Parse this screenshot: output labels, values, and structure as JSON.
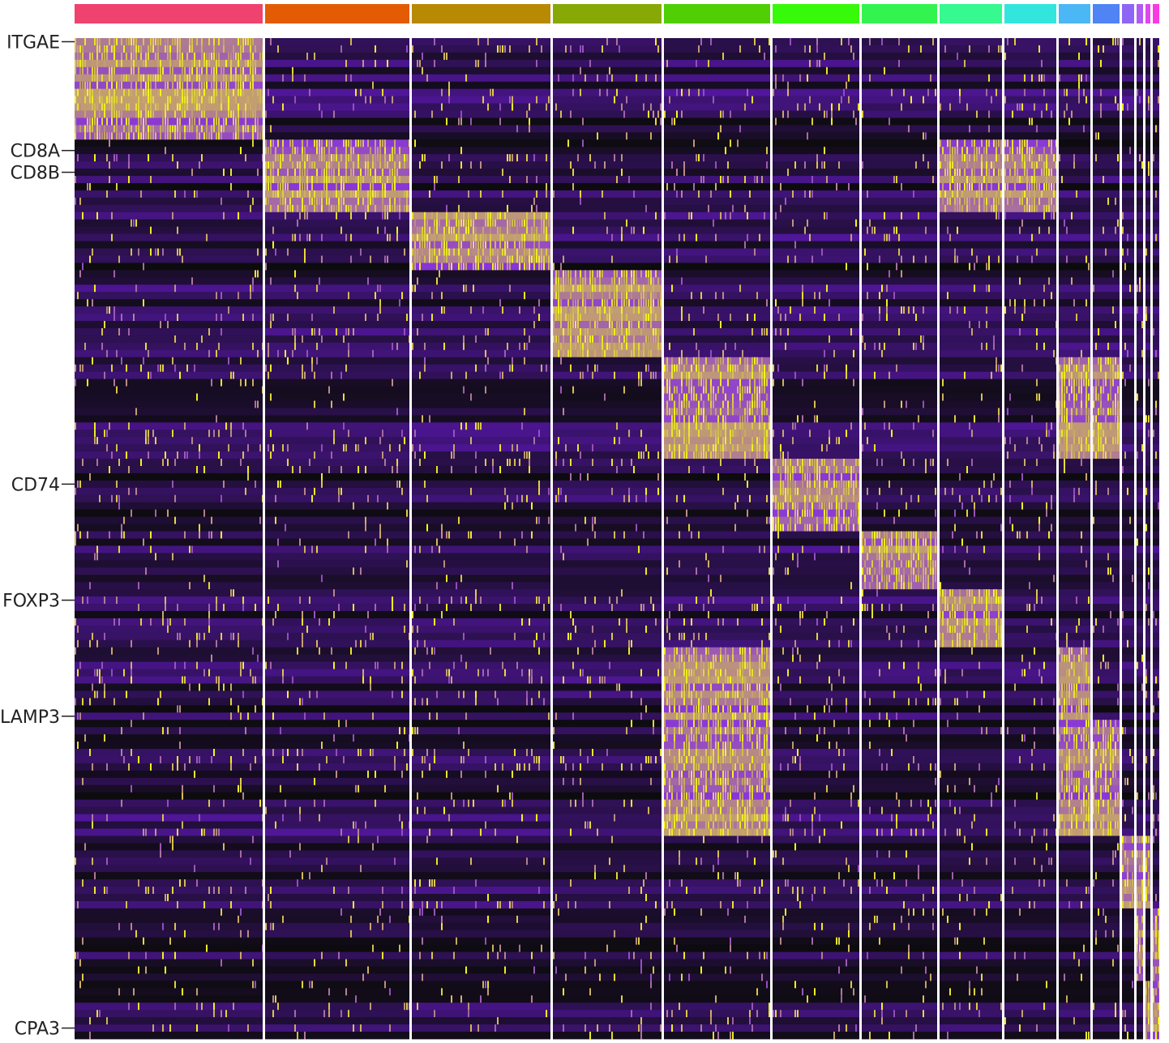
{
  "chart_data": {
    "type": "heatmap",
    "title": "",
    "xlabel": "",
    "ylabel": "",
    "color_scale": {
      "low": "#0b0b0b",
      "mid": "#7a1df0",
      "high": "#f4f719"
    },
    "clusters": [
      {
        "color": "#f0426e",
        "width": 232
      },
      {
        "color": "#e35c04",
        "width": 178
      },
      {
        "color": "#b88a03",
        "width": 171
      },
      {
        "color": "#88a805",
        "width": 134
      },
      {
        "color": "#4fcf04",
        "width": 131
      },
      {
        "color": "#37f90a",
        "width": 107
      },
      {
        "color": "#33f34f",
        "width": 93
      },
      {
        "color": "#36f98f",
        "width": 77
      },
      {
        "color": "#33e6dd",
        "width": 64
      },
      {
        "color": "#4bb7f5",
        "width": 39
      },
      {
        "color": "#5083f3",
        "width": 33
      },
      {
        "color": "#8f65f5",
        "width": 15
      },
      {
        "color": "#b05cf4",
        "width": 8
      },
      {
        "color": "#de46ef",
        "width": 6
      },
      {
        "color": "#f93ae0",
        "width": 8
      }
    ],
    "gene_blocks": [
      {
        "rows": 14,
        "high": [
          0
        ]
      },
      {
        "rows": 10,
        "high": [
          1,
          7,
          8
        ]
      },
      {
        "rows": 8,
        "high": [
          2
        ]
      },
      {
        "rows": 12,
        "high": [
          3
        ]
      },
      {
        "rows": 14,
        "high": [
          4,
          10,
          9
        ]
      },
      {
        "rows": 10,
        "high": [
          5
        ]
      },
      {
        "rows": 8,
        "high": [
          6
        ]
      },
      {
        "rows": 8,
        "high": [
          7
        ]
      },
      {
        "rows": 10,
        "high": [
          4,
          9
        ]
      },
      {
        "rows": 16,
        "high": [
          4,
          10,
          9
        ]
      },
      {
        "rows": 10,
        "high": [
          11,
          12,
          13
        ]
      },
      {
        "rows": 10,
        "high": [
          12,
          14
        ]
      },
      {
        "rows": 8,
        "high": [
          13,
          14
        ]
      }
    ],
    "row_labels": [
      {
        "gene": "ITGAE",
        "row_index": 0
      },
      {
        "gene": "CD8A",
        "row_index": 15
      },
      {
        "gene": "CD8B",
        "row_index": 18
      },
      {
        "gene": "CD74",
        "row_index": 61
      },
      {
        "gene": "FOXP3",
        "row_index": 77
      },
      {
        "gene": "LAMP3",
        "row_index": 93
      },
      {
        "gene": "CPA3",
        "row_index": 136
      }
    ]
  }
}
